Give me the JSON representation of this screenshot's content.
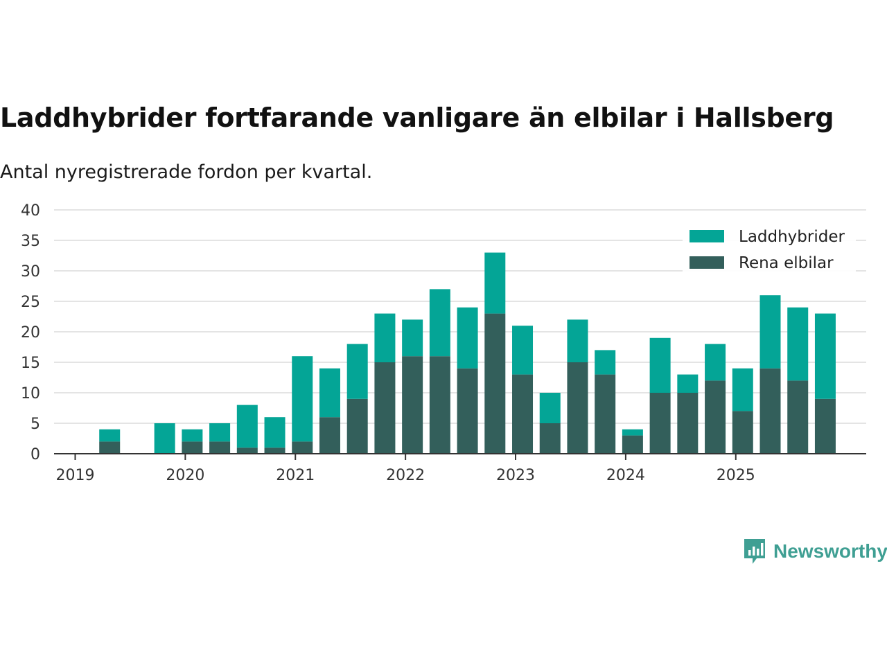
{
  "title": "Laddhybrider fortfarande vanligare än elbilar i Hallsberg",
  "subtitle": "Antal nyregistrerade fordon per kvartal.",
  "brand": {
    "name": "Newsworthy",
    "icon": "newsworthy-logo-icon"
  },
  "colors": {
    "laddhybrider": "#04a596",
    "rena_elbilar": "#335f5b",
    "grid": "#dcdcdc",
    "axis": "#333333",
    "brand": "#3f9f93"
  },
  "chart_data": {
    "type": "bar",
    "stacked": true,
    "title": "Laddhybrider fortfarande vanligare än elbilar i Hallsberg",
    "subtitle": "Antal nyregistrerade fordon per kvartal.",
    "xlabel": "",
    "ylabel": "",
    "ylim": [
      0,
      40
    ],
    "yticks": [
      0,
      5,
      10,
      15,
      20,
      25,
      30,
      35,
      40
    ],
    "xtick_labels": [
      "2019",
      "2020",
      "2021",
      "2022",
      "2023",
      "2024",
      "2025"
    ],
    "legend_position": "top-right",
    "categories": [
      "2019 Q1",
      "2019 Q2",
      "2019 Q3",
      "2019 Q4",
      "2020 Q1",
      "2020 Q2",
      "2020 Q3",
      "2020 Q4",
      "2021 Q1",
      "2021 Q2",
      "2021 Q3",
      "2021 Q4",
      "2022 Q1",
      "2022 Q2",
      "2022 Q3",
      "2022 Q4",
      "2023 Q1",
      "2023 Q2",
      "2023 Q3",
      "2023 Q4",
      "2024 Q1",
      "2024 Q2",
      "2024 Q3",
      "2024 Q4",
      "2025 Q1",
      "2025 Q2",
      "2025 Q3",
      "2025 Q4"
    ],
    "series": [
      {
        "name": "Rena elbilar",
        "key": "rena_elbilar",
        "values": [
          0,
          2,
          0,
          0,
          2,
          2,
          1,
          1,
          2,
          6,
          9,
          15,
          16,
          16,
          14,
          23,
          13,
          5,
          15,
          13,
          3,
          10,
          10,
          12,
          7,
          14,
          12,
          9
        ]
      },
      {
        "name": "Laddhybrider",
        "key": "laddhybrider",
        "values": [
          0,
          2,
          0,
          5,
          2,
          3,
          7,
          5,
          14,
          8,
          9,
          8,
          6,
          11,
          10,
          10,
          8,
          5,
          7,
          4,
          1,
          9,
          3,
          6,
          7,
          12,
          12,
          14
        ]
      }
    ],
    "legend_order": [
      "Laddhybrider",
      "Rena elbilar"
    ]
  }
}
